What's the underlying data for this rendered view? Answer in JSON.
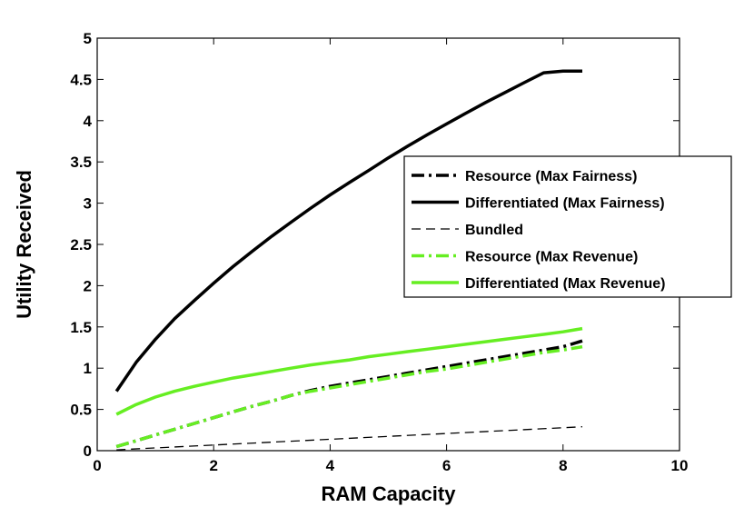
{
  "chart_data": {
    "type": "line",
    "title": "",
    "xlabel": "RAM Capacity",
    "ylabel": "Utility Received",
    "xlim": [
      0,
      10
    ],
    "ylim": [
      0,
      5
    ],
    "xticks": [
      0,
      2,
      4,
      6,
      8,
      10
    ],
    "yticks": [
      0,
      0.5,
      1,
      1.5,
      2,
      2.5,
      3,
      3.5,
      4,
      4.5,
      5
    ],
    "grid": false,
    "legend_position": "right",
    "series": [
      {
        "name": "Resource (Max Fairness)",
        "color": "#000000",
        "dash": "dashdot",
        "width": 3.5,
        "x": [
          0.33,
          0.67,
          1.0,
          1.33,
          1.67,
          2.0,
          2.33,
          2.67,
          3.0,
          3.33,
          3.67,
          4.0,
          4.33,
          4.67,
          5.0,
          5.33,
          5.67,
          6.0,
          6.33,
          6.67,
          7.0,
          7.33,
          7.67,
          8.0,
          8.33
        ],
        "y": [
          0.05,
          0.12,
          0.19,
          0.26,
          0.33,
          0.4,
          0.47,
          0.54,
          0.6,
          0.67,
          0.73,
          0.78,
          0.82,
          0.86,
          0.9,
          0.94,
          0.98,
          1.02,
          1.06,
          1.1,
          1.14,
          1.18,
          1.22,
          1.26,
          1.33
        ]
      },
      {
        "name": "Differentiated (Max Fairness)",
        "color": "#000000",
        "dash": "solid",
        "width": 3.5,
        "x": [
          0.33,
          0.67,
          1.0,
          1.33,
          1.67,
          2.0,
          2.33,
          2.67,
          3.0,
          3.33,
          3.67,
          4.0,
          4.33,
          4.67,
          5.0,
          5.33,
          5.67,
          6.0,
          6.33,
          6.67,
          7.0,
          7.33,
          7.67,
          8.0,
          8.33
        ],
        "y": [
          0.72,
          1.07,
          1.35,
          1.6,
          1.82,
          2.03,
          2.23,
          2.42,
          2.6,
          2.77,
          2.94,
          3.1,
          3.25,
          3.4,
          3.55,
          3.69,
          3.83,
          3.96,
          4.09,
          4.22,
          4.34,
          4.46,
          4.58,
          4.6,
          4.6
        ]
      },
      {
        "name": "Bundled",
        "color": "#000000",
        "dash": "dashed",
        "width": 1.3,
        "x": [
          0.33,
          8.33
        ],
        "y": [
          0.01,
          0.29
        ]
      },
      {
        "name": "Resource (Max Revenue)",
        "color": "#66ee22",
        "dash": "dashdot",
        "width": 3.5,
        "x": [
          0.33,
          0.67,
          1.0,
          1.33,
          1.67,
          2.0,
          2.33,
          2.67,
          3.0,
          3.33,
          3.67,
          4.0,
          4.33,
          4.67,
          5.0,
          5.33,
          5.67,
          6.0,
          6.33,
          6.67,
          7.0,
          7.33,
          7.67,
          8.0,
          8.33
        ],
        "y": [
          0.05,
          0.12,
          0.19,
          0.26,
          0.33,
          0.4,
          0.47,
          0.54,
          0.6,
          0.67,
          0.72,
          0.76,
          0.8,
          0.84,
          0.88,
          0.92,
          0.96,
          0.99,
          1.03,
          1.07,
          1.11,
          1.15,
          1.19,
          1.22,
          1.26
        ]
      },
      {
        "name": "Differentiated (Max Revenue)",
        "color": "#66ee22",
        "dash": "solid",
        "width": 3.5,
        "x": [
          0.33,
          0.67,
          1.0,
          1.33,
          1.67,
          2.0,
          2.33,
          2.67,
          3.0,
          3.33,
          3.67,
          4.0,
          4.33,
          4.67,
          5.0,
          5.33,
          5.67,
          6.0,
          6.33,
          6.67,
          7.0,
          7.33,
          7.67,
          8.0,
          8.33
        ],
        "y": [
          0.44,
          0.56,
          0.65,
          0.72,
          0.78,
          0.83,
          0.88,
          0.92,
          0.96,
          1.0,
          1.04,
          1.07,
          1.1,
          1.14,
          1.17,
          1.2,
          1.23,
          1.26,
          1.29,
          1.32,
          1.35,
          1.38,
          1.41,
          1.44,
          1.48
        ]
      }
    ]
  }
}
